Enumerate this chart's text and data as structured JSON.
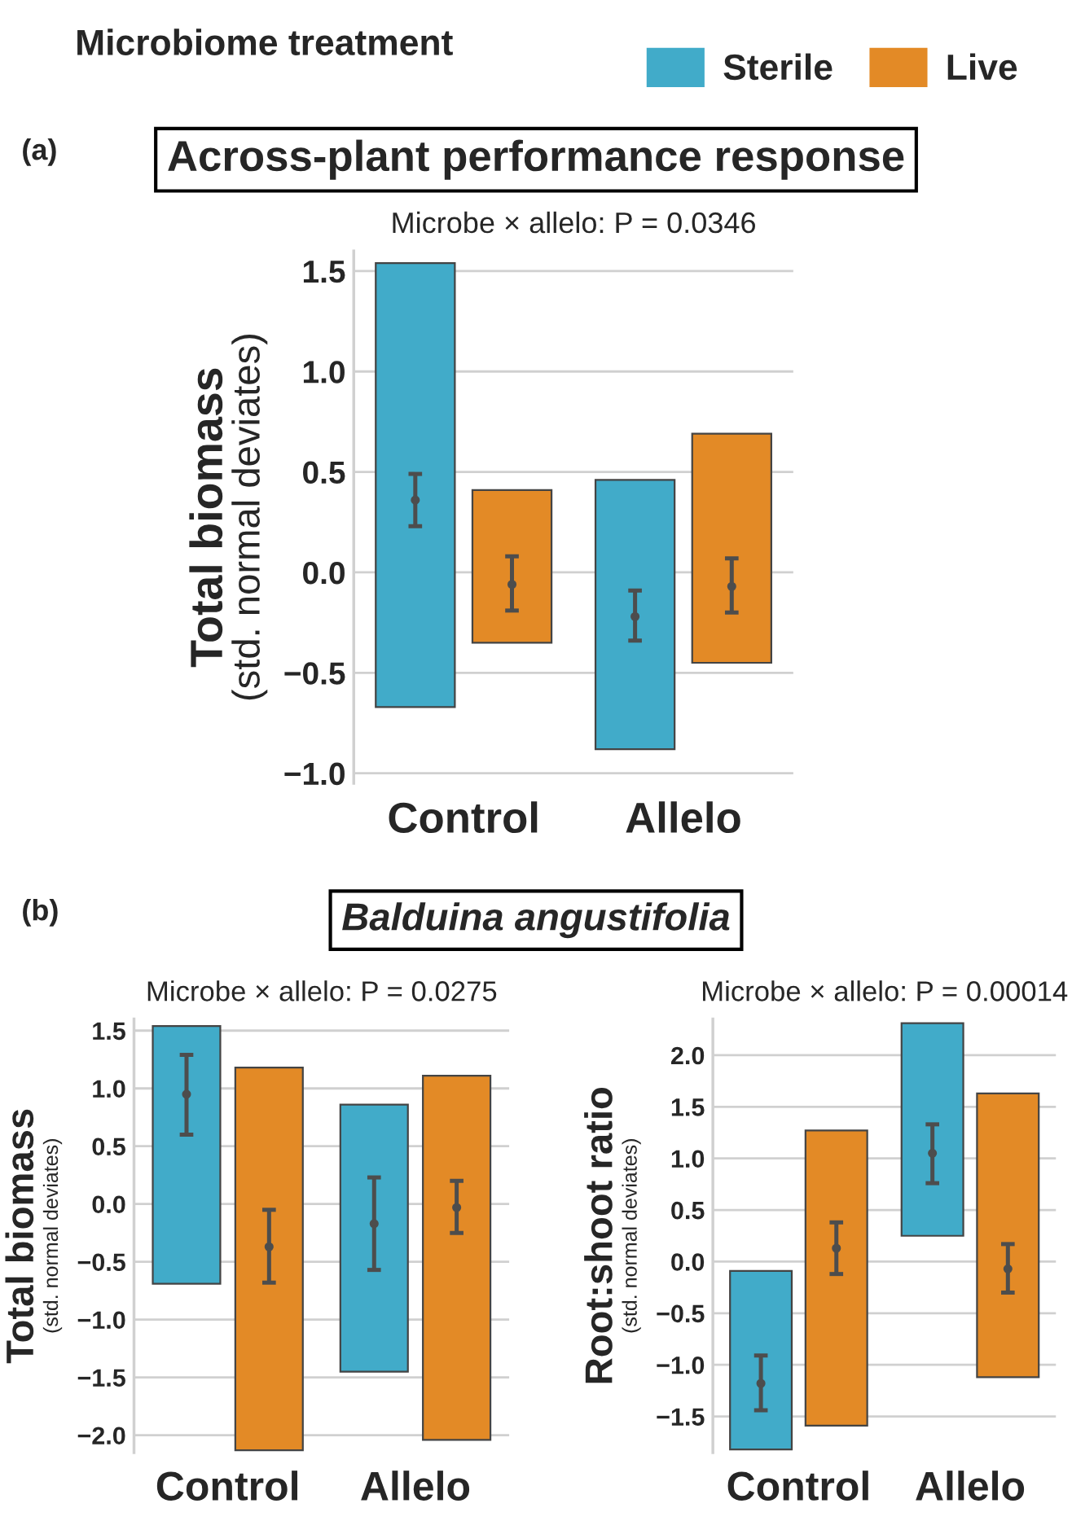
{
  "chart_data": [
    {
      "type": "bar",
      "title": "Across-plant performance response",
      "subtitle": "Microbe × allelo: P = 0.0346",
      "ylabel": "Total biomass\n(std. normal deviates)",
      "legend_title": "Microbiome treatment",
      "legend": "top",
      "grid": "y",
      "annotations": [
        "(a)"
      ],
      "categories": [
        "Control",
        "Allelo"
      ],
      "ylim": [
        -1.05,
        1.6
      ],
      "yticks": [
        {
          "value": -1.0,
          "label": "−1.0"
        },
        {
          "value": -0.5,
          "label": "−0.5"
        },
        {
          "value": 0.0,
          "label": "0.0"
        },
        {
          "value": 0.5,
          "label": "0.5"
        },
        {
          "value": 1.0,
          "label": "1.0"
        },
        {
          "value": 1.5,
          "label": "1.5"
        }
      ],
      "series": [
        {
          "name": "Sterile",
          "color": "#41abc9",
          "base": [
            -0.67,
            -0.88
          ],
          "values": [
            2.21,
            1.34
          ]
        },
        {
          "name": "Live",
          "color": "#e38a26",
          "base": [
            -0.35,
            -0.45
          ],
          "values": [
            0.76,
            1.14
          ]
        },
        {
          "type": "scatter",
          "marker": "circle",
          "color": "#4d4d4d",
          "values": [
            0.36,
            -0.22
          ],
          "errors": [
            [
              0.23,
              0.49
            ],
            [
              -0.34,
              -0.09
            ]
          ]
        },
        {
          "type": "scatter",
          "marker": "circle",
          "color": "#4d4d4d",
          "values": [
            -0.06,
            -0.07
          ],
          "errors": [
            [
              -0.19,
              0.08
            ],
            [
              -0.2,
              0.07
            ]
          ]
        }
      ]
    },
    {
      "type": "bar",
      "title": "Balduina angustifolia",
      "subtitle": "Microbe × allelo: P = 0.0275",
      "ylabel": "Total biomass\n(std. normal deviates)",
      "grid": "y",
      "annotations": [
        "(b)"
      ],
      "categories": [
        "Control",
        "Allelo"
      ],
      "ylim": [
        -2.15,
        1.6
      ],
      "yticks": [
        {
          "value": -2.0,
          "label": "−2.0"
        },
        {
          "value": -1.5,
          "label": "−1.5"
        },
        {
          "value": -1.0,
          "label": "−1.0"
        },
        {
          "value": -0.5,
          "label": "−0.5"
        },
        {
          "value": 0.0,
          "label": "0.0"
        },
        {
          "value": 0.5,
          "label": "0.5"
        },
        {
          "value": 1.0,
          "label": "1.0"
        },
        {
          "value": 1.5,
          "label": "1.5"
        }
      ],
      "series": [
        {
          "color": "#41abc9",
          "base": [
            -0.69,
            -1.45
          ],
          "values": [
            2.23,
            2.31
          ]
        },
        {
          "color": "#e38a26",
          "base": [
            -2.13,
            -2.04
          ],
          "values": [
            3.31,
            3.15
          ]
        },
        {
          "type": "scatter",
          "marker": "circle",
          "color": "#4d4d4d",
          "values": [
            0.95,
            -0.17
          ],
          "errors": [
            [
              0.6,
              1.29
            ],
            [
              -0.57,
              0.23
            ]
          ]
        },
        {
          "type": "scatter",
          "marker": "circle",
          "color": "#4d4d4d",
          "values": [
            -0.37,
            -0.03
          ],
          "errors": [
            [
              -0.68,
              -0.05
            ],
            [
              -0.25,
              0.2
            ]
          ]
        }
      ]
    },
    {
      "type": "bar",
      "subtitle": "Microbe × allelo: P = 0.00014",
      "ylabel": "Root:shoot ratio\n(std. normal deviates)",
      "grid": "y",
      "categories": [
        "Control",
        "Allelo"
      ],
      "ylim": [
        -1.85,
        2.35
      ],
      "yticks": [
        {
          "value": -1.5,
          "label": "−1.5"
        },
        {
          "value": -1.0,
          "label": "−1.0"
        },
        {
          "value": -0.5,
          "label": "−0.5"
        },
        {
          "value": 0.0,
          "label": "0.0"
        },
        {
          "value": 0.5,
          "label": "0.5"
        },
        {
          "value": 1.0,
          "label": "1.0"
        },
        {
          "value": 1.5,
          "label": "1.5"
        },
        {
          "value": 2.0,
          "label": "2.0"
        }
      ],
      "series": [
        {
          "color": "#41abc9",
          "base": [
            -1.82,
            0.25
          ],
          "values": [
            1.73,
            2.06
          ]
        },
        {
          "color": "#e38a26",
          "base": [
            -1.59,
            -1.12
          ],
          "values": [
            2.86,
            2.75
          ]
        },
        {
          "type": "scatter",
          "marker": "circle",
          "color": "#4d4d4d",
          "values": [
            -1.18,
            1.05
          ],
          "errors": [
            [
              -1.44,
              -0.91
            ],
            [
              0.76,
              1.33
            ]
          ]
        },
        {
          "type": "scatter",
          "marker": "circle",
          "color": "#4d4d4d",
          "values": [
            0.13,
            -0.07
          ],
          "errors": [
            [
              -0.12,
              0.38
            ],
            [
              -0.3,
              0.17
            ]
          ]
        }
      ]
    }
  ]
}
